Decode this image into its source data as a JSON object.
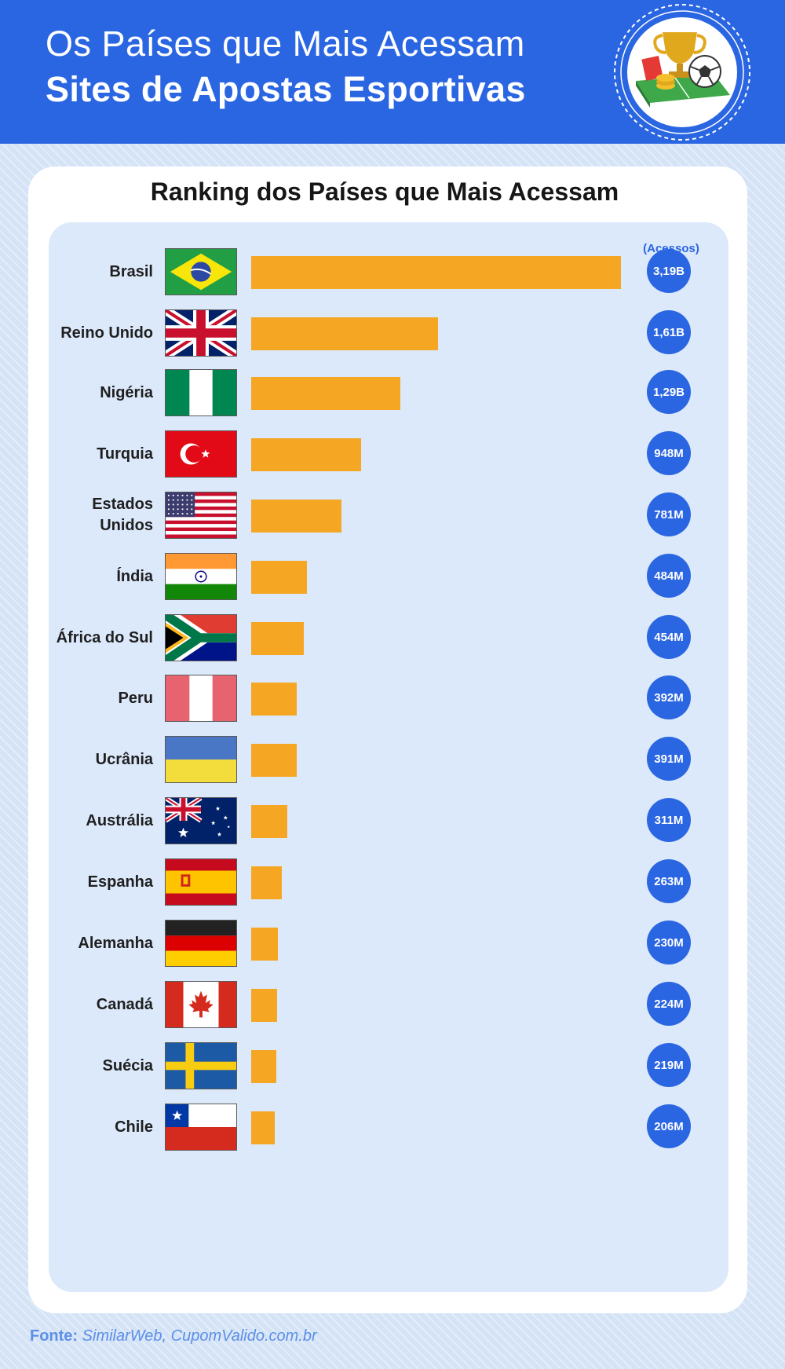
{
  "header": {
    "title_line1": "Os Países que Mais Acessam",
    "title_line2": "Sites de Apostas Esportivas"
  },
  "badge": {
    "icon": "trophy-ball-coins-icon",
    "colors": {
      "ring": "#ffffff",
      "cup": "#e0a81c",
      "field": "#3fa84a"
    }
  },
  "colors": {
    "header": "#2b66e2",
    "bar": "#f5a623",
    "value_circle": "#2b66e2",
    "panel": "#dce9fb",
    "source": "#5b8fe8"
  },
  "chart_data": {
    "type": "bar",
    "orientation": "horizontal",
    "title": "Ranking dos Países que Mais Acessam",
    "unit_label": "(Acessos)",
    "categories": [
      "Brasil",
      "Reino Unido",
      "Nigéria",
      "Turquia",
      "Estados Unidos",
      "Índia",
      "África do Sul",
      "Peru",
      "Ucrânia",
      "Austrália",
      "Espanha",
      "Alemanha",
      "Canadá",
      "Suécia",
      "Chile"
    ],
    "values": [
      3190000000,
      1610000000,
      1290000000,
      948000000,
      781000000,
      484000000,
      454000000,
      392000000,
      391000000,
      311000000,
      263000000,
      230000000,
      224000000,
      219000000,
      206000000
    ],
    "value_labels": [
      "3,19B",
      "1,61B",
      "1,29B",
      "948M",
      "781M",
      "484M",
      "454M",
      "392M",
      "391M",
      "311M",
      "263M",
      "230M",
      "224M",
      "219M",
      "206M"
    ],
    "flags": [
      "brazil-flag-icon",
      "uk-flag-icon",
      "nigeria-flag-icon",
      "turkey-flag-icon",
      "usa-flag-icon",
      "india-flag-icon",
      "south-africa-flag-icon",
      "peru-flag-icon",
      "ukraine-flag-icon",
      "australia-flag-icon",
      "spain-flag-icon",
      "germany-flag-icon",
      "canada-flag-icon",
      "sweden-flag-icon",
      "chile-flag-icon"
    ],
    "grid": false,
    "legend": "none"
  },
  "footer": {
    "source_label": "Fonte:",
    "source_text": "SimilarWeb, CupomValido.com.br"
  }
}
